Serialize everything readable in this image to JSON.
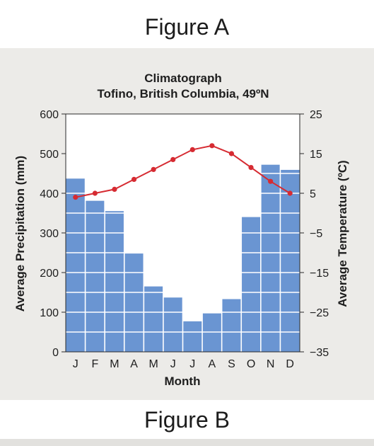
{
  "captions": {
    "top": "Figure A",
    "bottom": "Figure B"
  },
  "colors": {
    "bar": "#6a95d2",
    "line": "#d62b32",
    "grid": "#ffffff",
    "plot_bg": "#ffffff",
    "scan_bg": "#ecebe8"
  },
  "chart_data": {
    "type": "bar",
    "title": "Climatograph",
    "subtitle": "Tofino, British Columbia, 49ºN",
    "xlabel": "Month",
    "ylabel": "Average Precipitation (mm)",
    "y2label": "Average Temperature (ºC)",
    "categories": [
      "J",
      "F",
      "M",
      "A",
      "M",
      "J",
      "J",
      "A",
      "S",
      "O",
      "N",
      "D"
    ],
    "ylim": [
      0,
      600
    ],
    "y2lim": [
      -35,
      25
    ],
    "yticks": [
      0,
      100,
      200,
      300,
      400,
      500,
      600
    ],
    "y2ticks": [
      -35,
      -25,
      -15,
      -5,
      5,
      15,
      25
    ],
    "grid": true,
    "series": [
      {
        "type": "bar",
        "axis": "left",
        "values": [
          437,
          381,
          355,
          248,
          165,
          137,
          77,
          97,
          133,
          340,
          472,
          459
        ]
      },
      {
        "type": "line",
        "axis": "right",
        "values": [
          4,
          5,
          6,
          8.5,
          11,
          13.5,
          16,
          17,
          15,
          11.5,
          8,
          5
        ]
      }
    ]
  }
}
